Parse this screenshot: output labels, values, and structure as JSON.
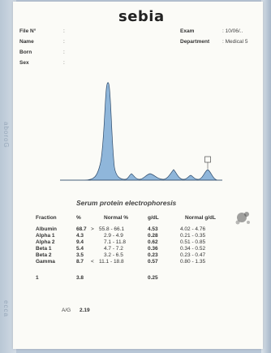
{
  "header": {
    "logo": "sebia",
    "file_label": "File N°",
    "name_label": "Name",
    "born_label": "Born",
    "sex_label": "Sex",
    "colon": ":",
    "exam_label": "Exam",
    "exam_value": ": 10/06/..",
    "department_label": "Department",
    "department_value": ": Medical 5"
  },
  "chart_data": {
    "type": "area",
    "title": "Serum protein electrophoresis",
    "fractions": [
      "Albumin",
      "Alpha 1",
      "Alpha 2",
      "Beta 1",
      "Beta 2",
      "Gamma"
    ],
    "values": [
      68.7,
      4.3,
      9.4,
      5.4,
      3.5,
      8.7
    ],
    "grid": false,
    "legend": "none",
    "colors": {
      "fill": "#8fb6da",
      "stroke": "#2d4a6a"
    }
  },
  "table": {
    "headers": [
      "Fraction",
      "%",
      "Normal %",
      "g/dL",
      "Normal g/dL"
    ],
    "rows": [
      {
        "name": "Albumin",
        "pct": "68.7",
        "flag": ">",
        "normal_pct": "55.8 - 66.1",
        "gdl": "4.53",
        "normal_gdl": "4.02 - 4.76"
      },
      {
        "name": "Alpha 1",
        "pct": "4.3",
        "flag": "",
        "normal_pct": "2.9 - 4.9",
        "gdl": "0.28",
        "normal_gdl": "0.21 - 0.35"
      },
      {
        "name": "Alpha 2",
        "pct": "9.4",
        "flag": "",
        "normal_pct": "7.1 - 11.8",
        "gdl": "0.62",
        "normal_gdl": "0.51 - 0.85"
      },
      {
        "name": "Beta 1",
        "pct": "5.4",
        "flag": "",
        "normal_pct": "4.7 - 7.2",
        "gdl": "0.36",
        "normal_gdl": "0.34 - 0.52"
      },
      {
        "name": "Beta 2",
        "pct": "3.5",
        "flag": "",
        "normal_pct": "3.2 - 6.5",
        "gdl": "0.23",
        "normal_gdl": "0.23 - 0.47"
      },
      {
        "name": "Gamma",
        "pct": "8.7",
        "flag": "<",
        "normal_pct": "11.1 - 18.8",
        "gdl": "0.57",
        "normal_gdl": "0.80 - 1.35"
      }
    ],
    "extra": {
      "name": "1",
      "pct": "3.8",
      "gdl": "0.25"
    }
  },
  "ag": {
    "label": "A/G",
    "value": "2.19"
  },
  "edge": {
    "left_top": "aboroG",
    "left_bottom": "ecca"
  }
}
